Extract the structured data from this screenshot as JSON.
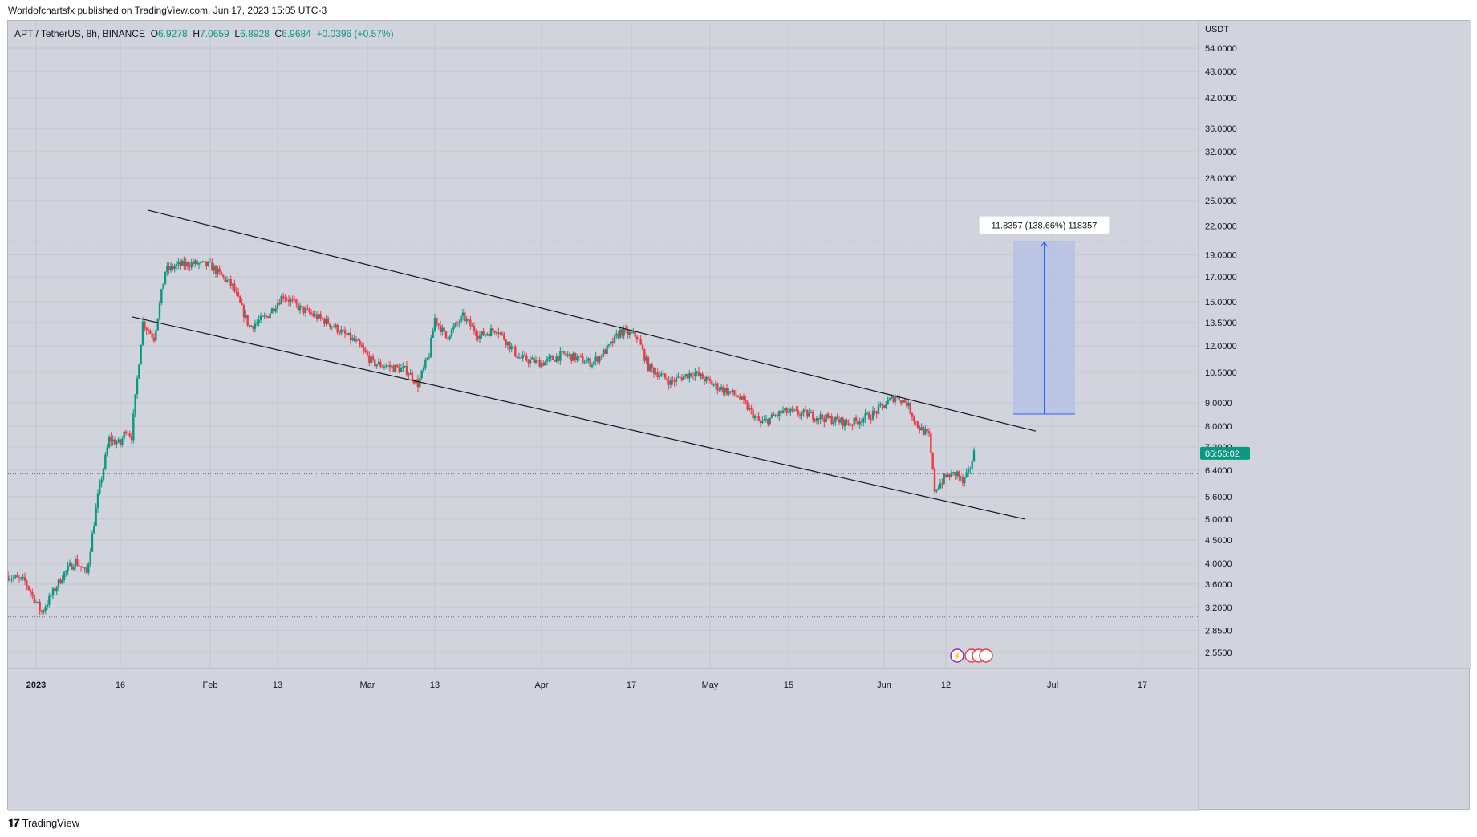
{
  "header": {
    "published_by": "Worldofchartsfx published on TradingView.com, Jun 17, 2023 15:05 UTC-3"
  },
  "legend": {
    "symbol": "APT / TetherUS, 8h, BINANCE",
    "open_label": "O",
    "open": "6.9278",
    "high_label": "H",
    "high": "7.0659",
    "low_label": "L",
    "low": "6.8928",
    "close_label": "C",
    "close": "6.9684",
    "change": "+0.0396 (+0.57%)"
  },
  "price_axis": {
    "unit": "USDT",
    "ticks": [
      "54.0000",
      "48.0000",
      "42.0000",
      "36.0000",
      "32.0000",
      "28.0000",
      "25.0000",
      "22.0000",
      "19.0000",
      "17.0000",
      "15.0000",
      "13.5000",
      "12.0000",
      "10.5000",
      "9.0000",
      "8.0000",
      "7.2000",
      "6.4000",
      "5.6000",
      "5.0000",
      "4.5000",
      "4.0000",
      "3.6000",
      "3.2000",
      "2.8500",
      "2.5500"
    ],
    "countdown": "05:56:02"
  },
  "time_axis": {
    "ticks": [
      {
        "label": "2023",
        "date": "2023-01-01",
        "bold": true
      },
      {
        "label": "16",
        "date": "2023-01-16"
      },
      {
        "label": "Feb",
        "date": "2023-02-01"
      },
      {
        "label": "13",
        "date": "2023-02-13"
      },
      {
        "label": "Mar",
        "date": "2023-03-01"
      },
      {
        "label": "13",
        "date": "2023-03-13"
      },
      {
        "label": "Apr",
        "date": "2023-04-01"
      },
      {
        "label": "17",
        "date": "2023-04-17"
      },
      {
        "label": "May",
        "date": "2023-05-01"
      },
      {
        "label": "15",
        "date": "2023-05-15"
      },
      {
        "label": "Jun",
        "date": "2023-06-01"
      },
      {
        "label": "12",
        "date": "2023-06-12"
      },
      {
        "label": "Jul",
        "date": "2023-07-01"
      },
      {
        "label": "17",
        "date": "2023-07-17"
      }
    ]
  },
  "measure": {
    "label": "11.8357 (138.66%) 118357",
    "from_price": 8.5,
    "to_price": 20.3,
    "start_date": "2023-06-24",
    "end_date": "2023-07-05"
  },
  "colors": {
    "up": "#089981",
    "down": "#f23645",
    "background": "#d1d4dc",
    "grid": "#c3c6ce",
    "trendline": "#131722",
    "measure_fill": "#b3bfe6",
    "measure_line": "#2962ff",
    "axis_text": "#131722"
  },
  "chart_data": {
    "type": "candlestick",
    "symbol": "APT / TetherUS",
    "interval": "8h",
    "exchange": "BINANCE",
    "y_scale": "log",
    "ylim": [
      2.35,
      62
    ],
    "xlim": [
      "2022-12-27",
      "2023-07-27"
    ],
    "grid": true,
    "price_points": [
      {
        "date": "2022-12-27",
        "price": 3.75
      },
      {
        "date": "2022-12-30",
        "price": 3.65
      },
      {
        "date": "2023-01-02",
        "price": 3.12
      },
      {
        "date": "2023-01-04",
        "price": 3.45
      },
      {
        "date": "2023-01-06",
        "price": 3.8
      },
      {
        "date": "2023-01-08",
        "price": 4.05
      },
      {
        "date": "2023-01-10",
        "price": 3.8
      },
      {
        "date": "2023-01-12",
        "price": 5.6
      },
      {
        "date": "2023-01-14",
        "price": 7.5
      },
      {
        "date": "2023-01-16",
        "price": 7.3
      },
      {
        "date": "2023-01-17",
        "price": 7.9
      },
      {
        "date": "2023-01-18",
        "price": 7.6
      },
      {
        "date": "2023-01-20",
        "price": 13.5
      },
      {
        "date": "2023-01-22",
        "price": 12.5
      },
      {
        "date": "2023-01-24",
        "price": 17.5
      },
      {
        "date": "2023-01-26",
        "price": 18.0
      },
      {
        "date": "2023-01-29",
        "price": 18.2
      },
      {
        "date": "2023-02-01",
        "price": 18.0
      },
      {
        "date": "2023-02-05",
        "price": 16.2
      },
      {
        "date": "2023-02-08",
        "price": 13.2
      },
      {
        "date": "2023-02-11",
        "price": 13.9
      },
      {
        "date": "2023-02-14",
        "price": 15.5
      },
      {
        "date": "2023-02-17",
        "price": 14.5
      },
      {
        "date": "2023-02-22",
        "price": 13.5
      },
      {
        "date": "2023-02-27",
        "price": 12.2
      },
      {
        "date": "2023-03-02",
        "price": 11.0
      },
      {
        "date": "2023-03-05",
        "price": 10.8
      },
      {
        "date": "2023-03-08",
        "price": 10.6
      },
      {
        "date": "2023-03-10",
        "price": 9.9
      },
      {
        "date": "2023-03-12",
        "price": 11.5
      },
      {
        "date": "2023-03-13",
        "price": 13.8
      },
      {
        "date": "2023-03-15",
        "price": 12.5
      },
      {
        "date": "2023-03-18",
        "price": 13.9
      },
      {
        "date": "2023-03-21",
        "price": 12.6
      },
      {
        "date": "2023-03-24",
        "price": 13.1
      },
      {
        "date": "2023-03-28",
        "price": 11.3
      },
      {
        "date": "2023-04-01",
        "price": 11.0
      },
      {
        "date": "2023-04-05",
        "price": 11.5
      },
      {
        "date": "2023-04-10",
        "price": 11.0
      },
      {
        "date": "2023-04-13",
        "price": 11.9
      },
      {
        "date": "2023-04-15",
        "price": 12.9
      },
      {
        "date": "2023-04-18",
        "price": 12.6
      },
      {
        "date": "2023-04-20",
        "price": 10.8
      },
      {
        "date": "2023-04-24",
        "price": 10.0
      },
      {
        "date": "2023-04-28",
        "price": 10.5
      },
      {
        "date": "2023-05-02",
        "price": 9.8
      },
      {
        "date": "2023-05-06",
        "price": 9.3
      },
      {
        "date": "2023-05-10",
        "price": 8.1
      },
      {
        "date": "2023-05-14",
        "price": 8.6
      },
      {
        "date": "2023-05-18",
        "price": 8.5
      },
      {
        "date": "2023-05-22",
        "price": 8.3
      },
      {
        "date": "2023-05-26",
        "price": 8.1
      },
      {
        "date": "2023-05-30",
        "price": 8.5
      },
      {
        "date": "2023-06-03",
        "price": 9.3
      },
      {
        "date": "2023-06-05",
        "price": 9.0
      },
      {
        "date": "2023-06-07",
        "price": 8.0
      },
      {
        "date": "2023-06-09",
        "price": 7.6
      },
      {
        "date": "2023-06-10",
        "price": 5.8
      },
      {
        "date": "2023-06-12",
        "price": 6.2
      },
      {
        "date": "2023-06-14",
        "price": 6.3
      },
      {
        "date": "2023-06-15",
        "price": 6.0
      },
      {
        "date": "2023-06-16",
        "price": 6.3
      },
      {
        "date": "2023-06-17",
        "price": 6.97
      }
    ],
    "price_lines": [
      {
        "price": 20.3
      },
      {
        "price": 6.28
      },
      {
        "price": 3.05
      }
    ],
    "trendlines": [
      {
        "name": "channel-upper",
        "from": {
          "date": "2023-01-21",
          "price": 23.8
        },
        "to": {
          "date": "2023-06-28",
          "price": 7.8
        }
      },
      {
        "name": "channel-lower",
        "from": {
          "date": "2023-01-18",
          "price": 13.9
        },
        "to": {
          "date": "2023-06-26",
          "price": 5.0
        }
      }
    ]
  }
}
